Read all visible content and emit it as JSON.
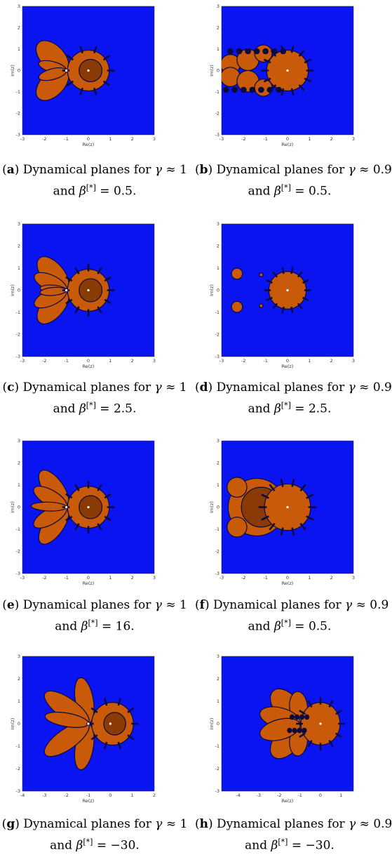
{
  "axes": {
    "xlabel": "Re(z)",
    "ylabel": "Im(z)",
    "yticks": [
      "3",
      "2",
      "1",
      "0",
      "-1",
      "-2",
      "-3"
    ],
    "xticks_std": [
      "-3",
      "-2",
      "-1",
      "0",
      "1",
      "2",
      "3"
    ],
    "xticks_g": [
      "-4",
      "-3",
      "-2",
      "-1",
      "0",
      "1",
      "2"
    ],
    "xticks_h": [
      "-4",
      "-3",
      "-2",
      "-1",
      "0",
      "1"
    ]
  },
  "captions": [
    {
      "tag": "a",
      "text1": " Dynamical planes for ",
      "greek": "γ",
      "rel": " ≈ 1",
      "text2": "and ",
      "beta": "β",
      "sup": "[*]",
      "val": " = 0.5."
    },
    {
      "tag": "b",
      "text1": " Dynamical planes for ",
      "greek": "γ",
      "rel": " ≈ 0.9",
      "text2": "and ",
      "beta": "β",
      "sup": "[*]",
      "val": " = 0.5."
    },
    {
      "tag": "c",
      "text1": " Dynamical planes for ",
      "greek": "γ",
      "rel": " ≈ 1",
      "text2": "and ",
      "beta": "β",
      "sup": "[*]",
      "val": " = 2.5."
    },
    {
      "tag": "d",
      "text1": " Dynamical planes for ",
      "greek": "γ",
      "rel": " ≈ 0.9",
      "text2": "and ",
      "beta": "β",
      "sup": "[*]",
      "val": " = 2.5."
    },
    {
      "tag": "e",
      "text1": " Dynamical planes for ",
      "greek": "γ",
      "rel": " ≈ 1",
      "text2": "and ",
      "beta": "β",
      "sup": "[*]",
      "val": " = 16."
    },
    {
      "tag": "f",
      "text1": " Dynamical planes for ",
      "greek": "γ",
      "rel": " ≈ 0.9",
      "text2": "and ",
      "beta": "β",
      "sup": "[*]",
      "val": " = 0.5."
    },
    {
      "tag": "g",
      "text1": " Dynamical planes for ",
      "greek": "γ",
      "rel": " ≈ 1",
      "text2": "and ",
      "beta": "β",
      "sup": "[*]",
      "val": " = −30."
    },
    {
      "tag": "h",
      "text1": " Dynamical planes for ",
      "greek": "γ",
      "rel": " ≈ 0.9",
      "text2": "and ",
      "beta": "β",
      "sup": "[*]",
      "val": " = −30."
    }
  ],
  "colors": {
    "background": "#0a14f0",
    "basin": "#c85a0a",
    "basin_dark": "#8a3a05",
    "boundary": "#0a0a3c",
    "point": "#ffffff"
  }
}
